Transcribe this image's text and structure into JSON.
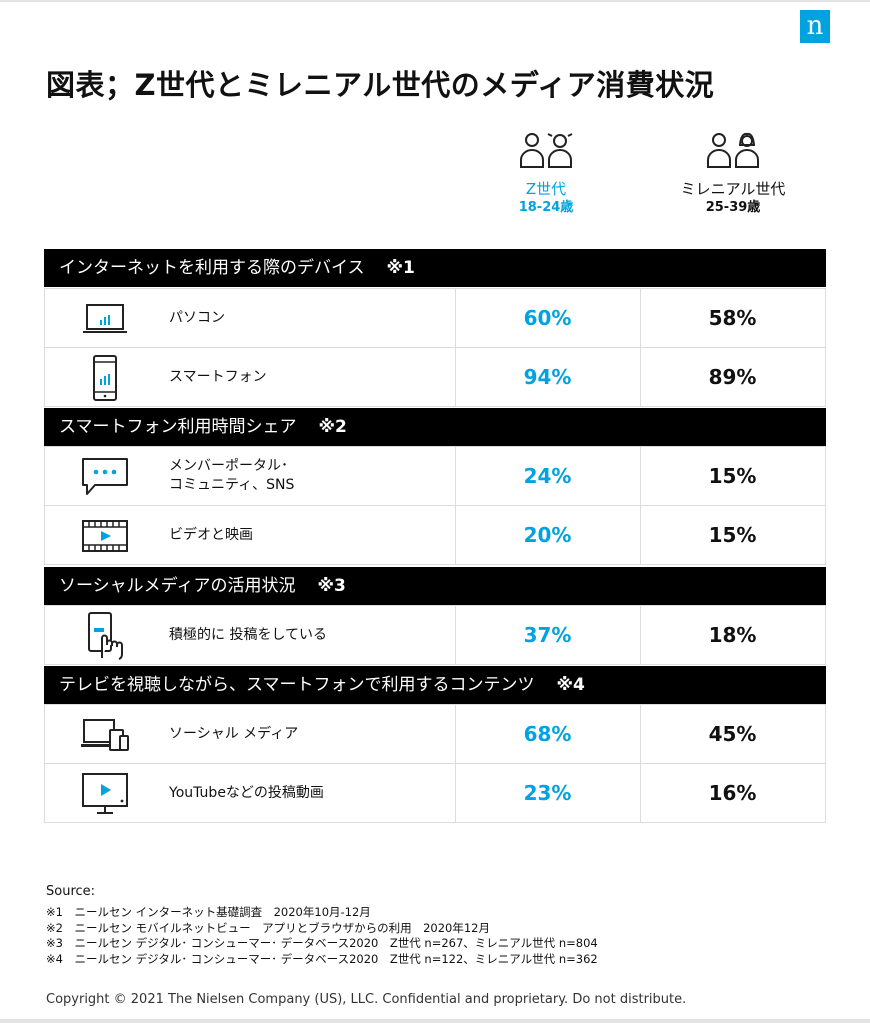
{
  "brand": {
    "logo_letter": "n",
    "accent": "#00a3e0"
  },
  "title": "図表；Z世代とミレニアル世代のメディア消費状況",
  "columns": {
    "z": {
      "name": "Z世代",
      "age": "18-24歳",
      "color": "#00a3e0"
    },
    "m": {
      "name": "ミレニアル世代",
      "age": "25-39歳",
      "color": "#111111"
    }
  },
  "sections": [
    {
      "title": "インターネットを利用する際のデバイス",
      "note": "※1",
      "rows": [
        {
          "icon": "laptop-icon",
          "label": "パソコン",
          "z": "60%",
          "m": "58%"
        },
        {
          "icon": "smartphone-icon",
          "label": "スマートフォン",
          "z": "94%",
          "m": "89%"
        }
      ]
    },
    {
      "title": "スマートフォン利用時間シェア",
      "note": "※2",
      "rows": [
        {
          "icon": "chat-bubble-icon",
          "label": "メンバーポータル･\nコミュニティ、SNS",
          "z": "24%",
          "m": "15%"
        },
        {
          "icon": "film-strip-icon",
          "label": "ビデオと映画",
          "z": "20%",
          "m": "15%"
        }
      ]
    },
    {
      "title": "ソーシャルメディアの活用状況",
      "note": "※3",
      "rows": [
        {
          "icon": "hand-touch-phone-icon",
          "label": "積極的に 投稿をしている",
          "z": "37%",
          "m": "18%"
        }
      ]
    },
    {
      "title": "テレビを視聴しながら、スマートフォンで利用するコンテンツ",
      "note": "※4",
      "rows": [
        {
          "icon": "multi-device-icon",
          "label": "ソーシャル メディア",
          "z": "68%",
          "m": "45%"
        },
        {
          "icon": "monitor-play-icon",
          "label": "YouTubeなどの投稿動画",
          "z": "23%",
          "m": "16%"
        }
      ]
    }
  ],
  "source_label": "Source:",
  "notes": [
    "※1　ニールセン インターネット基礎調査　2020年10月-12月",
    "※2　ニールセン モバイルネットビュー　アプリとブラウザからの利用　2020年12月",
    "※3　ニールセン デジタル･ コンシューマー･ データベース2020　Z世代 n=267、ミレニアル世代 n=804",
    "※4　ニールセン デジタル･ コンシューマー･ データベース2020　Z世代 n=122、ミレニアル世代 n=362"
  ],
  "copyright": "Copyright © 2021 The Nielsen Company (US), LLC. Confidential and proprietary. Do not distribute."
}
